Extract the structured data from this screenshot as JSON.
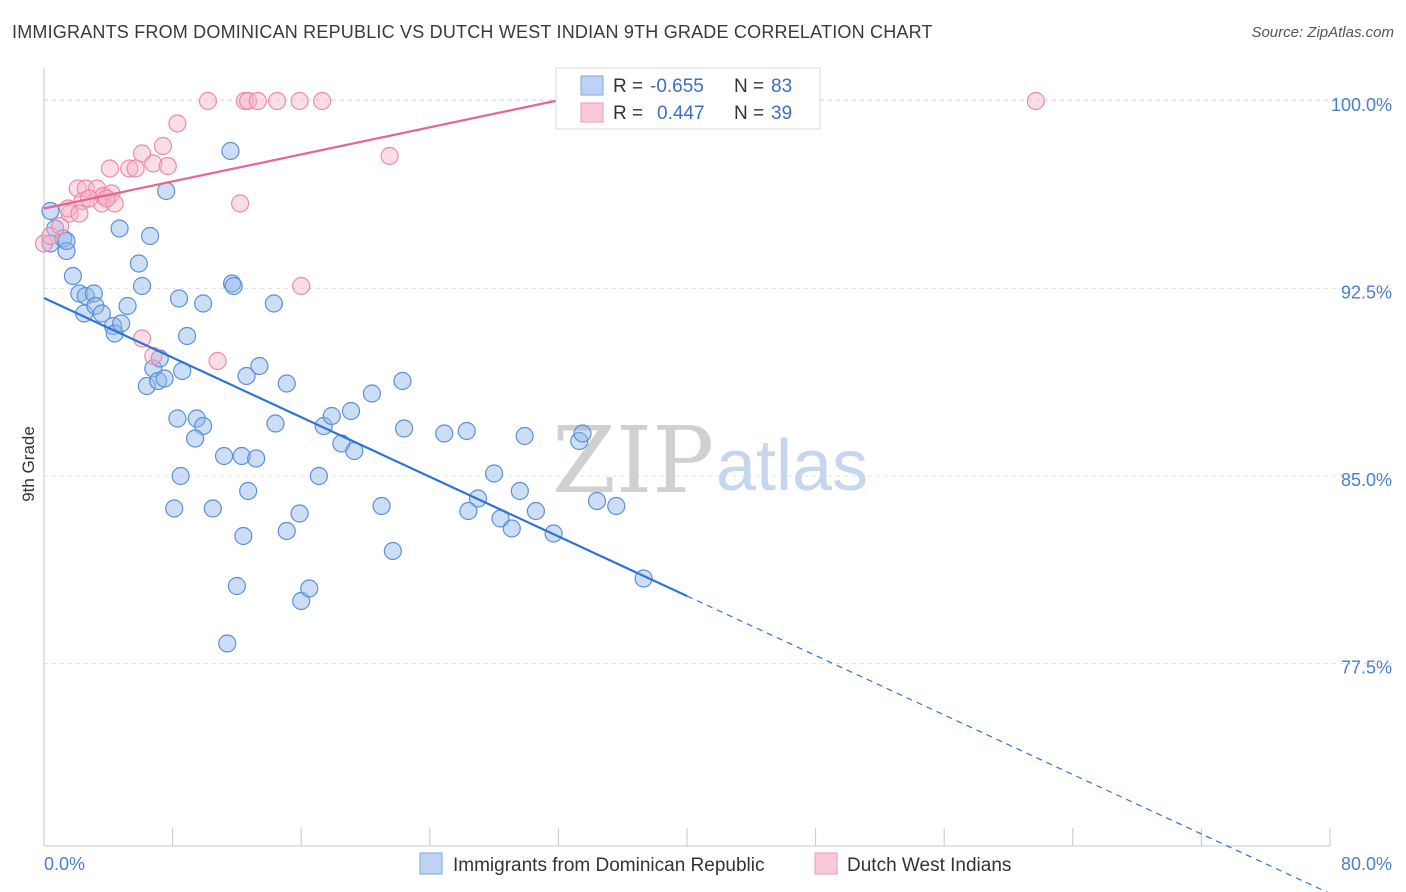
{
  "title": "IMMIGRANTS FROM DOMINICAN REPUBLIC VS DUTCH WEST INDIAN 9TH GRADE CORRELATION CHART",
  "source": "Source: ZipAtlas.com",
  "watermark": {
    "zip": "ZIP",
    "atlas": "atlas"
  },
  "chart_data": {
    "type": "scatter",
    "xlabel": "",
    "ylabel": "9th Grade",
    "xlim": [
      0,
      80
    ],
    "ylim": [
      70.2,
      101
    ],
    "x_tick_labels": [
      "0.0%",
      "80.0%"
    ],
    "y_ticks": [
      77.5,
      85.0,
      92.5,
      100.0
    ],
    "y_tick_labels": [
      "77.5%",
      "85.0%",
      "92.5%",
      "100.0%"
    ],
    "grid": true,
    "legend_top": [
      {
        "r_label": "R =",
        "r_value": "-0.655",
        "n_label": "N =",
        "n_value": "83"
      },
      {
        "r_label": "R =",
        "r_value": "0.447",
        "n_label": "N =",
        "n_value": "39"
      }
    ],
    "series": [
      {
        "name": "Immigrants from Dominican Republic",
        "color": "#8fb6ea",
        "stroke": "#5b8fd6",
        "line_color": "#2d74d6",
        "trend": {
          "x0": 0,
          "y0": 92.12,
          "x1": 40,
          "y1": 80.2,
          "x_dash_end": 80,
          "y_dash_end": 68.3
        },
        "points": [
          [
            0.4,
            95.6
          ],
          [
            0.7,
            94.9
          ],
          [
            0.4,
            94.3
          ],
          [
            1.2,
            94.5
          ],
          [
            1.4,
            94.0
          ],
          [
            1.4,
            94.4
          ],
          [
            1.8,
            93.0
          ],
          [
            2.2,
            92.3
          ],
          [
            2.6,
            92.2
          ],
          [
            3.1,
            92.3
          ],
          [
            2.5,
            91.5
          ],
          [
            3.2,
            91.8
          ],
          [
            3.6,
            91.5
          ],
          [
            4.3,
            91.0
          ],
          [
            4.4,
            90.7
          ],
          [
            4.8,
            91.1
          ],
          [
            5.2,
            91.8
          ],
          [
            5.9,
            93.5
          ],
          [
            6.1,
            92.6
          ],
          [
            4.7,
            94.9
          ],
          [
            6.6,
            94.6
          ],
          [
            7.6,
            96.4
          ],
          [
            11.6,
            98.0
          ],
          [
            11.7,
            92.7
          ],
          [
            9.9,
            91.9
          ],
          [
            8.9,
            90.6
          ],
          [
            6.8,
            89.3
          ],
          [
            6.4,
            88.6
          ],
          [
            7.1,
            88.8
          ],
          [
            7.2,
            89.7
          ],
          [
            7.5,
            88.9
          ],
          [
            8.6,
            89.2
          ],
          [
            8.3,
            87.3
          ],
          [
            9.5,
            87.3
          ],
          [
            9.9,
            87.0
          ],
          [
            9.4,
            86.5
          ],
          [
            11.2,
            85.8
          ],
          [
            12.3,
            85.8
          ],
          [
            13.2,
            85.7
          ],
          [
            8.5,
            85.0
          ],
          [
            8.1,
            83.7
          ],
          [
            10.5,
            83.7
          ],
          [
            12.7,
            84.4
          ],
          [
            12.6,
            89.0
          ],
          [
            13.4,
            89.4
          ],
          [
            14.3,
            91.9
          ],
          [
            15.1,
            88.7
          ],
          [
            14.4,
            87.1
          ],
          [
            15.9,
            83.5
          ],
          [
            15.1,
            82.8
          ],
          [
            12.4,
            82.6
          ],
          [
            17.1,
            85.0
          ],
          [
            17.4,
            87.0
          ],
          [
            17.9,
            87.4
          ],
          [
            18.5,
            86.3
          ],
          [
            19.1,
            87.6
          ],
          [
            19.3,
            86.0
          ],
          [
            20.4,
            88.3
          ],
          [
            21.0,
            83.8
          ],
          [
            21.7,
            82.0
          ],
          [
            22.3,
            88.8
          ],
          [
            22.4,
            86.9
          ],
          [
            24.9,
            86.7
          ],
          [
            26.3,
            86.8
          ],
          [
            27.0,
            84.1
          ],
          [
            26.4,
            83.6
          ],
          [
            28.0,
            85.1
          ],
          [
            28.4,
            83.3
          ],
          [
            29.1,
            82.9
          ],
          [
            29.6,
            84.4
          ],
          [
            29.9,
            86.6
          ],
          [
            30.6,
            83.6
          ],
          [
            31.7,
            82.7
          ],
          [
            33.3,
            86.4
          ],
          [
            33.5,
            86.7
          ],
          [
            34.4,
            84.0
          ],
          [
            35.6,
            83.8
          ],
          [
            37.3,
            80.9
          ],
          [
            8.4,
            92.1
          ],
          [
            11.8,
            92.6
          ],
          [
            12.0,
            80.6
          ],
          [
            16.0,
            80.0
          ],
          [
            16.5,
            80.5
          ],
          [
            11.4,
            78.3
          ]
        ]
      },
      {
        "name": "Dutch West Indians",
        "color": "#f7b3c8",
        "stroke": "#ec8aa8",
        "line_color": "#e5668e",
        "trend": {
          "x0": 0,
          "y0": 95.7,
          "x1": 34,
          "y1": 100.3
        },
        "points": [
          [
            0.0,
            94.3
          ],
          [
            0.4,
            94.6
          ],
          [
            1.0,
            95.0
          ],
          [
            1.6,
            95.5
          ],
          [
            1.5,
            95.7
          ],
          [
            2.1,
            96.5
          ],
          [
            2.4,
            96.0
          ],
          [
            2.6,
            96.5
          ],
          [
            3.3,
            96.5
          ],
          [
            3.7,
            96.2
          ],
          [
            3.7,
            96.2
          ],
          [
            3.6,
            95.9
          ],
          [
            4.2,
            96.3
          ],
          [
            4.1,
            97.3
          ],
          [
            5.3,
            97.3
          ],
          [
            5.7,
            97.3
          ],
          [
            6.1,
            97.9
          ],
          [
            6.8,
            97.5
          ],
          [
            7.7,
            97.4
          ],
          [
            7.4,
            98.2
          ],
          [
            8.3,
            99.1
          ],
          [
            10.2,
            100.0
          ],
          [
            12.5,
            100.0
          ],
          [
            12.7,
            100.0
          ],
          [
            13.3,
            100.0
          ],
          [
            14.5,
            100.0
          ],
          [
            15.9,
            100.0
          ],
          [
            17.3,
            100.0
          ],
          [
            12.2,
            95.9
          ],
          [
            16.0,
            92.6
          ],
          [
            21.5,
            97.8
          ],
          [
            61.7,
            100.0
          ],
          [
            6.1,
            90.5
          ],
          [
            6.8,
            89.8
          ],
          [
            10.8,
            89.6
          ],
          [
            4.4,
            95.9
          ],
          [
            2.2,
            95.5
          ],
          [
            2.8,
            96.1
          ],
          [
            3.9,
            96.1
          ]
        ]
      }
    ]
  }
}
